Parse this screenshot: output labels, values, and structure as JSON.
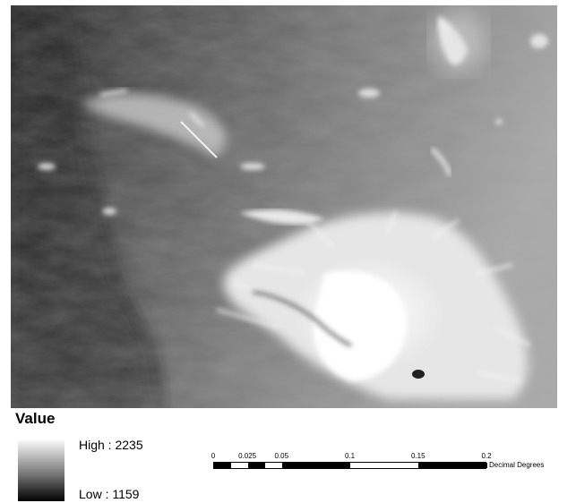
{
  "map": {
    "description_icon": "dem-hillshade-raster"
  },
  "legend": {
    "title": "Value",
    "high_label": "High : 2235",
    "low_label": "Low : 1159",
    "high_value": 2235,
    "low_value": 1159,
    "ramp_colors": [
      "#ffffff",
      "#000000"
    ]
  },
  "scale_bar": {
    "ticks": [
      "0",
      "0.025",
      "0.05",
      "0.1",
      "0.15",
      "0.2"
    ],
    "units": "Decimal Degrees"
  }
}
